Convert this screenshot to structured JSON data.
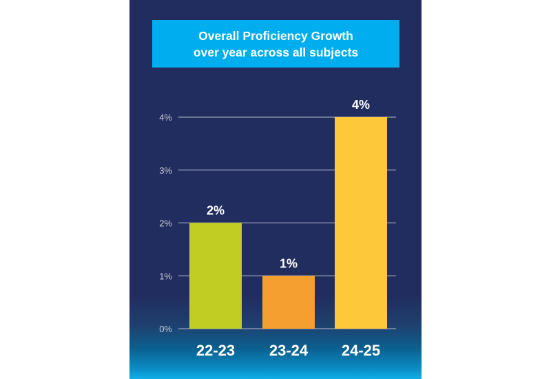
{
  "chart_data": {
    "type": "bar",
    "title": [
      "Overall Proficiency Growth",
      "over year across all subjects"
    ],
    "categories": [
      "22-23",
      "23-24",
      "24-25"
    ],
    "values": [
      2,
      1,
      4
    ],
    "data_labels": [
      "2%",
      "1%",
      "4%"
    ],
    "colors": [
      "#c2cd23",
      "#f69f31",
      "#fdc839"
    ],
    "ylim": [
      0,
      4
    ],
    "yticks": [
      0,
      1,
      2,
      3,
      4
    ],
    "ytick_labels": [
      "0%",
      "1%",
      "2%",
      "3%",
      "4%"
    ],
    "grid": true,
    "xlabel": "",
    "ylabel": ""
  },
  "colors": {
    "background": "#212d5e",
    "title_box": "#00aeef",
    "gridline": "#9aa0b8"
  }
}
